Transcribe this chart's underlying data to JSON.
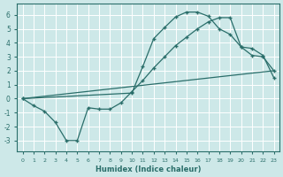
{
  "bg_color": "#cde8e8",
  "grid_color": "#b8d8d8",
  "line_color": "#2a6e6a",
  "xlabel": "Humidex (Indice chaleur)",
  "xlim": [
    -0.5,
    23.5
  ],
  "ylim": [
    -3.8,
    6.8
  ],
  "yticks": [
    -3,
    -2,
    -1,
    0,
    1,
    2,
    3,
    4,
    5,
    6
  ],
  "xticks": [
    0,
    1,
    2,
    3,
    4,
    5,
    6,
    7,
    8,
    9,
    10,
    11,
    12,
    13,
    14,
    15,
    16,
    17,
    18,
    19,
    20,
    21,
    22,
    23
  ],
  "curve1_x": [
    0,
    1,
    2,
    3,
    4,
    5,
    6,
    7,
    8,
    9,
    10,
    11,
    12,
    13,
    14,
    15,
    16,
    17,
    18,
    19,
    20,
    21,
    22,
    23
  ],
  "curve1_y": [
    0.0,
    -0.5,
    -0.9,
    -1.7,
    -3.0,
    -3.0,
    -0.65,
    -0.75,
    -0.75,
    -0.3,
    0.5,
    1.3,
    2.2,
    3.0,
    3.8,
    4.4,
    5.0,
    5.5,
    5.8,
    5.8,
    3.7,
    3.6,
    3.1,
    1.5
  ],
  "curve2_x": [
    0,
    23
  ],
  "curve2_y": [
    0.0,
    2.0
  ],
  "curve3_x": [
    0,
    10,
    11,
    12,
    13,
    14,
    15,
    16,
    17,
    18,
    19,
    20,
    21,
    22,
    23
  ],
  "curve3_y": [
    0.0,
    0.4,
    2.3,
    4.3,
    5.1,
    5.85,
    6.2,
    6.2,
    5.9,
    5.0,
    4.6,
    3.7,
    3.1,
    3.0,
    2.0
  ]
}
